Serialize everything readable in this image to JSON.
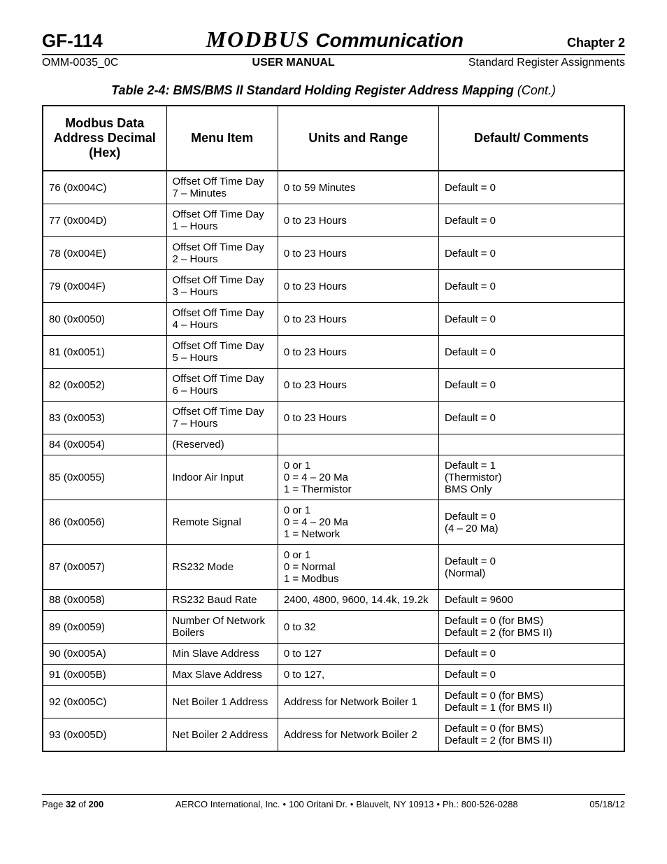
{
  "header": {
    "gf": "GF-114",
    "modbus": "MODBUS",
    "comm": " Communication",
    "chapter": "Chapter 2",
    "docnum": "OMM-0035_0C",
    "manual": "USER MANUAL",
    "section": "Standard Register Assignments"
  },
  "caption": {
    "main": "Table 2-4:  BMS/BMS II Standard Holding Register Address Mapping ",
    "cont": "(Cont.)"
  },
  "columns": [
    "Modbus Data Address Decimal (Hex)",
    "Menu Item",
    "Units and Range",
    "Default/ Comments"
  ],
  "rows": [
    {
      "addr": "76 (0x004C)",
      "menu": "Offset Off Time Day 7 – Minutes",
      "range": "0 to 59 Minutes",
      "def": "Default = 0"
    },
    {
      "addr": "77 (0x004D)",
      "menu": "Offset Off Time Day 1 – Hours",
      "range": "0 to 23 Hours",
      "def": "Default = 0"
    },
    {
      "addr": "78 (0x004E)",
      "menu": "Offset Off Time Day 2 – Hours",
      "range": "0 to 23 Hours",
      "def": "Default = 0"
    },
    {
      "addr": "79 (0x004F)",
      "menu": "Offset Off Time Day 3 – Hours",
      "range": "0 to 23 Hours",
      "def": "Default = 0"
    },
    {
      "addr": "80 (0x0050)",
      "menu": "Offset Off Time Day 4 – Hours",
      "range": "0 to 23 Hours",
      "def": "Default = 0"
    },
    {
      "addr": "81 (0x0051)",
      "menu": "Offset Off Time Day 5 – Hours",
      "range": "0 to 23 Hours",
      "def": "Default = 0"
    },
    {
      "addr": "82 (0x0052)",
      "menu": "Offset Off Time Day 6 – Hours",
      "range": "0 to 23 Hours",
      "def": "Default = 0"
    },
    {
      "addr": "83 (0x0053)",
      "menu": "Offset Off Time Day 7 – Hours",
      "range": "0 to 23 Hours",
      "def": "Default = 0"
    },
    {
      "addr": "84 (0x0054)",
      "menu": "(Reserved)",
      "range": "",
      "def": ""
    },
    {
      "addr": "85 (0x0055)",
      "menu": "Indoor Air Input",
      "range": "0 or 1\n0 = 4 – 20 Ma\n1 = Thermistor",
      "def": "Default = 1\n(Thermistor)\nBMS Only"
    },
    {
      "addr": "86 (0x0056)",
      "menu": "Remote Signal",
      "range": "0 or 1\n0 = 4 – 20 Ma\n1 = Network",
      "def": "Default = 0\n(4 – 20 Ma)"
    },
    {
      "addr": "87 (0x0057)",
      "menu": "RS232 Mode",
      "range": "0 or 1\n0 = Normal\n1 = Modbus",
      "def": "Default = 0\n(Normal)"
    },
    {
      "addr": "88 (0x0058)",
      "menu": "RS232 Baud Rate",
      "range": "2400, 4800, 9600, 14.4k, 19.2k",
      "def": "Default = 9600"
    },
    {
      "addr": "89 (0x0059)",
      "menu": "Number Of Network Boilers",
      "range": "0 to 32",
      "def": "Default = 0 (for BMS)\nDefault = 2 (for BMS II)"
    },
    {
      "addr": "90 (0x005A)",
      "menu": "Min Slave Address",
      "range": "0 to 127",
      "def": "Default = 0"
    },
    {
      "addr": "91 (0x005B)",
      "menu": "Max Slave Address",
      "range": "0 to 127,",
      "def": "Default = 0"
    },
    {
      "addr": "92 (0x005C)",
      "menu": "Net Boiler 1 Address",
      "range": "Address for Network Boiler 1",
      "def": "Default = 0 (for BMS)\nDefault = 1 (for BMS II)"
    },
    {
      "addr": "93 (0x005D)",
      "menu": "Net Boiler 2 Address",
      "range": "Address for Network Boiler 2",
      "def": "Default = 0 (for BMS)\nDefault = 2 (for BMS II)"
    }
  ],
  "footer": {
    "page_prefix": "Page ",
    "page_num": "32",
    "page_of": " of ",
    "page_total": "200",
    "company": "AERCO International, Inc.",
    "addr1": "100 Oritani Dr.",
    "addr2": "Blauvelt, NY 10913",
    "phone": "Ph.: 800-526-0288",
    "date": "05/18/12"
  }
}
